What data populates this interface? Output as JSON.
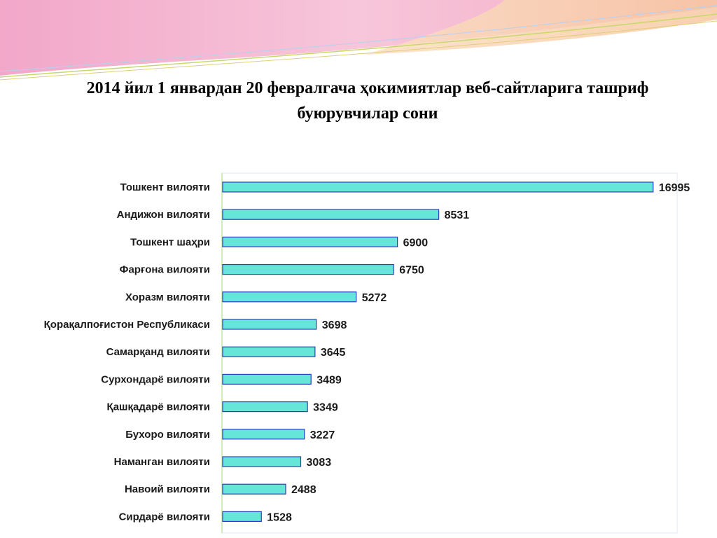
{
  "chart_data": {
    "type": "bar",
    "orientation": "horizontal",
    "title_lines": [
      "2014 йил 1 январдан  20 февралгача ҳокимиятлар веб-сайтларига ташриф",
      "буюрувчилар сони"
    ],
    "categories": [
      "Тошкент вилояти",
      "Андижон вилояти",
      "Тошкент шаҳри",
      "Фарғона вилояти",
      "Хоразм вилояти",
      "Қорақалпоғистон Республикаси",
      "Самарқанд вилояти",
      "Сурхондарё вилояти",
      "Қашқадарё вилояти",
      "Бухоро вилояти",
      "Наманган вилояти",
      "Навоий вилояти",
      "Сирдарё вилояти"
    ],
    "values": [
      16995,
      8531,
      6900,
      6750,
      5272,
      3698,
      3645,
      3489,
      3349,
      3227,
      3083,
      2488,
      1528
    ],
    "value_labels": [
      "16995",
      "8531",
      "6900",
      "6750",
      "5272",
      "3698",
      "3645",
      "3489",
      "3349",
      "3227",
      "3083",
      "2488",
      "1528"
    ],
    "xlim": [
      0,
      17000
    ],
    "grid": false,
    "legend": "none",
    "bar_color": "#66e6d8",
    "bar_border_color": "#2b3fbf"
  }
}
